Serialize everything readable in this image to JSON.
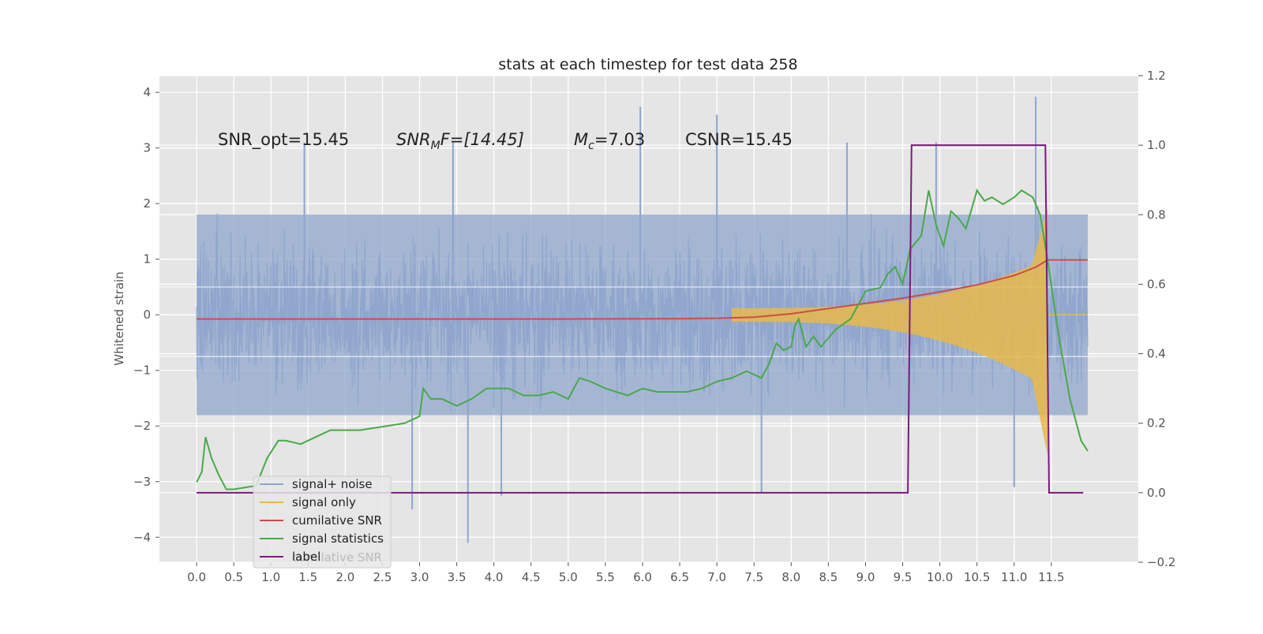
{
  "chart_data": {
    "type": "line",
    "title": "stats at each timestep for test data 258",
    "ylabel": "Whitened strain",
    "xlabel": "",
    "x_ticks": [
      "0.0",
      "0.5",
      "1.0",
      "1.5",
      "2.0",
      "2.5",
      "3.0",
      "3.5",
      "4.0",
      "4.5",
      "5.0",
      "5.5",
      "6.0",
      "6.5",
      "7.0",
      "7.5",
      "8.0",
      "8.5",
      "9.0",
      "9.5",
      "10.0",
      "10.5",
      "11.0",
      "11.5"
    ],
    "xlim": [
      -0.5,
      12.67
    ],
    "ylim": [
      -4.45,
      4.3
    ],
    "y_ticks": [
      -4,
      -3,
      -2,
      -1,
      0,
      1,
      2,
      3,
      4
    ],
    "y_tick_labels": [
      "−4",
      "−3",
      "−2",
      "−1",
      "0",
      "1",
      "2",
      "3",
      "4"
    ],
    "ylim_right": [
      -0.2,
      1.2
    ],
    "y_right_ticks": [
      -0.2,
      0.0,
      0.2,
      0.4,
      0.6,
      0.8,
      1.0,
      1.2
    ],
    "y_right_tick_labels": [
      "−0.2",
      "0.0",
      "0.2",
      "0.4",
      "0.6",
      "0.8",
      "1.0",
      "1.2"
    ],
    "grid": true,
    "legend_position": "lower-left",
    "annotations": {
      "snr_opt": "SNR_opt=15.45",
      "snr_mf_main": "SNR",
      "snr_mf_sub": "M",
      "snr_mf_rest": "F=[14.45]",
      "mc_main": "M",
      "mc_sub": "c",
      "mc_rest": "=7.03",
      "csnr": "CSNR=15.45"
    },
    "series": [
      {
        "name": "signal+ noise",
        "color": "#8fa5cc",
        "axis": "left",
        "description_note_free": true,
        "noise_band": {
          "x_start": 0.0,
          "x_end": 11.99,
          "typical_low": -1.9,
          "typical_high": 1.9
        },
        "peaks": [
          {
            "x": 5.97,
            "y": 3.74
          },
          {
            "x": 7.0,
            "y": 3.6
          },
          {
            "x": 11.29,
            "y": 3.92
          },
          {
            "x": 1.45,
            "y": 3.1
          },
          {
            "x": 3.45,
            "y": 3.1
          },
          {
            "x": 8.75,
            "y": 3.1
          },
          {
            "x": 9.95,
            "y": 3.1
          },
          {
            "x": 3.65,
            "y": -4.1
          },
          {
            "x": 2.9,
            "y": -3.5
          },
          {
            "x": 4.1,
            "y": -3.25
          },
          {
            "x": 11.0,
            "y": -3.1
          },
          {
            "x": 7.6,
            "y": -3.2
          }
        ]
      },
      {
        "name": "signal only",
        "color": "#e8b94a",
        "axis": "left",
        "chirp": {
          "x_start": 7.2,
          "x_merge": 11.45,
          "x_end": 11.99
        }
      },
      {
        "name": "cumilative SNR",
        "color": "#cc4c4c",
        "axis": "right",
        "x": [
          0.0,
          5.0,
          6.5,
          7.0,
          7.5,
          8.0,
          8.5,
          9.0,
          9.5,
          10.0,
          10.5,
          11.0,
          11.3,
          11.45,
          11.99
        ],
        "y": [
          0.5,
          0.5,
          0.501,
          0.502,
          0.505,
          0.515,
          0.53,
          0.545,
          0.56,
          0.578,
          0.598,
          0.625,
          0.65,
          0.67,
          0.67
        ]
      },
      {
        "name": "signal statistics",
        "color": "#4aa84a",
        "axis": "right",
        "x": [
          0.0,
          0.07,
          0.12,
          0.2,
          0.3,
          0.4,
          0.5,
          0.8,
          0.95,
          1.1,
          1.2,
          1.4,
          1.6,
          1.8,
          2.0,
          2.2,
          2.5,
          2.8,
          3.0,
          3.05,
          3.15,
          3.3,
          3.5,
          3.7,
          3.9,
          4.0,
          4.2,
          4.4,
          4.6,
          4.8,
          5.0,
          5.15,
          5.3,
          5.5,
          5.8,
          6.0,
          6.2,
          6.4,
          6.6,
          6.8,
          7.0,
          7.2,
          7.4,
          7.6,
          7.7,
          7.8,
          7.9,
          8.0,
          8.05,
          8.1,
          8.2,
          8.3,
          8.4,
          8.6,
          8.8,
          9.0,
          9.2,
          9.3,
          9.4,
          9.5,
          9.6,
          9.75,
          9.85,
          9.95,
          10.05,
          10.15,
          10.25,
          10.35,
          10.5,
          10.6,
          10.7,
          10.85,
          11.0,
          11.1,
          11.25,
          11.35,
          11.45,
          11.6,
          11.75,
          11.9,
          11.99
        ],
        "y": [
          0.03,
          0.06,
          0.16,
          0.1,
          0.05,
          0.01,
          0.01,
          0.02,
          0.1,
          0.15,
          0.15,
          0.14,
          0.16,
          0.18,
          0.18,
          0.18,
          0.19,
          0.2,
          0.22,
          0.3,
          0.27,
          0.27,
          0.25,
          0.27,
          0.3,
          0.3,
          0.3,
          0.28,
          0.28,
          0.29,
          0.27,
          0.33,
          0.32,
          0.3,
          0.28,
          0.3,
          0.29,
          0.29,
          0.29,
          0.3,
          0.32,
          0.33,
          0.35,
          0.33,
          0.37,
          0.43,
          0.41,
          0.42,
          0.48,
          0.5,
          0.42,
          0.45,
          0.42,
          0.47,
          0.5,
          0.58,
          0.59,
          0.63,
          0.65,
          0.6,
          0.7,
          0.74,
          0.87,
          0.77,
          0.71,
          0.81,
          0.79,
          0.76,
          0.87,
          0.84,
          0.85,
          0.83,
          0.85,
          0.87,
          0.85,
          0.8,
          0.67,
          0.45,
          0.27,
          0.15,
          0.12
        ]
      },
      {
        "name": "label",
        "color": "#7b1a7b",
        "axis": "right",
        "x": [
          0.0,
          9.57,
          9.62,
          11.42,
          11.47,
          11.93
        ],
        "y": [
          0.0,
          0.0,
          1.0,
          1.0,
          0.0,
          0.0
        ]
      }
    ],
    "legend": [
      "signal+ noise",
      "signal only",
      "cumilative SNR",
      "signal statistics",
      "label"
    ],
    "legend_ghost_text": "cumilative SNR"
  }
}
